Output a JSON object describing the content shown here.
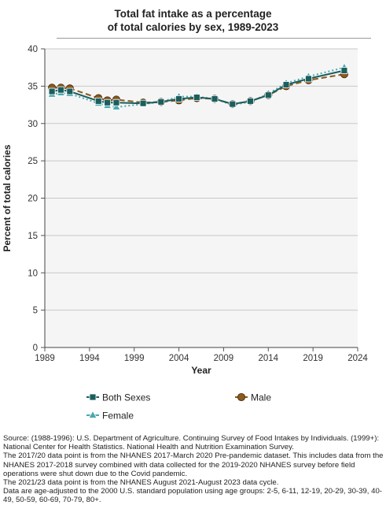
{
  "title_lines": [
    "Total fat intake as a percentage",
    "of total calories by sex, 1989-2023"
  ],
  "chart_data": {
    "type": "line",
    "title": "Total fat intake as a percentage of total calories by sex, 1989-2023",
    "xlabel": "Year",
    "ylabel": "Percent of total calories",
    "xlim": [
      1989,
      2024
    ],
    "ylim": [
      0,
      40
    ],
    "xticks": [
      1989,
      1994,
      1999,
      2004,
      2009,
      2014,
      2019,
      2024
    ],
    "yticks": [
      0,
      5,
      10,
      15,
      20,
      25,
      30,
      35,
      40
    ],
    "grid": true,
    "legend_position": "bottom",
    "series": [
      {
        "name": "Both Sexes",
        "color": "#1b5e5e",
        "marker": "square",
        "line": "solid",
        "x": [
          1989.8,
          1990.8,
          1991.8,
          1995,
          1996,
          1997,
          2000,
          2002,
          2004,
          2006,
          2008,
          2010,
          2012,
          2014,
          2016,
          2018.5,
          2022.5
        ],
        "y": [
          34.3,
          34.5,
          34.3,
          33,
          32.8,
          32.8,
          32.7,
          32.9,
          33.3,
          33.5,
          33.3,
          32.6,
          33.0,
          33.8,
          35.2,
          36.0,
          37.1
        ]
      },
      {
        "name": "Male",
        "color": "#8b5a1e",
        "marker": "circle",
        "line": "dashed",
        "x": [
          1989.8,
          1990.8,
          1991.8,
          1995,
          1996,
          1997,
          2000,
          2002,
          2004,
          2006,
          2008,
          2010,
          2012,
          2014,
          2016,
          2018.5,
          2022.5
        ],
        "y": [
          34.8,
          34.8,
          34.7,
          33.4,
          33.1,
          33.2,
          32.8,
          32.9,
          33.1,
          33.4,
          33.3,
          32.6,
          33.0,
          33.8,
          35.0,
          35.8,
          36.6
        ]
      },
      {
        "name": "Female",
        "color": "#4aa9ae",
        "marker": "triangle",
        "line": "dotted",
        "x": [
          1989.8,
          1990.8,
          1991.8,
          1995,
          1996,
          1997,
          2000,
          2002,
          2004,
          2006,
          2008,
          2010,
          2012,
          2014,
          2016,
          2018.5,
          2022.5
        ],
        "y": [
          33.9,
          34.1,
          34.0,
          32.7,
          32.4,
          32.2,
          32.6,
          32.9,
          33.6,
          33.6,
          33.3,
          32.5,
          32.9,
          34.0,
          35.4,
          36.3,
          37.5
        ]
      }
    ]
  },
  "source_lines": [
    "Source: (1988-1996): U.S. Department of Agriculture. Continuing Survey of Food Intakes by Individuals. (1999+): National Center for Health Statistics. National Health and Nutrition Examination Survey.",
    "The 2017/20 data point is from the NHANES 2017-March 2020 Pre-pandemic dataset. This includes data from the NHANES 2017-2018 survey combined with data collected for the 2019-2020 NHANES survey before field operations were shut down due to the Covid pandemic.",
    "The 2021/23 data point is from the NHANES August 2021-August 2023 data cycle.",
    "Data are age-adjusted to the 2000 U.S. standard population using age groups: 2-5, 6-11, 12-19, 20-29, 30-39, 40-49, 50-59, 60-69, 70-79, 80+."
  ]
}
